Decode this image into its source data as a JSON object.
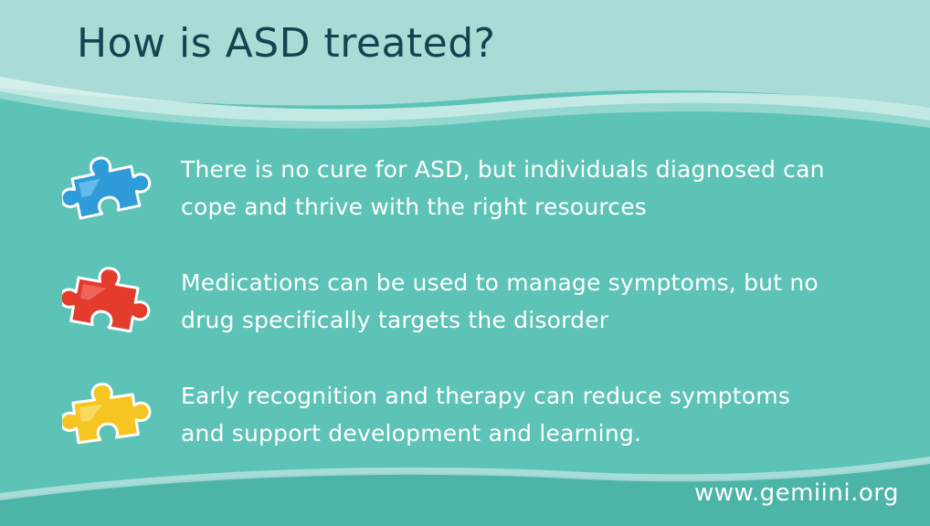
{
  "slide": {
    "title": "How is ASD treated?",
    "bullets": [
      {
        "text": "There is no cure for ASD, but individuals diagnosed can cope and thrive with the right resources",
        "icon": "blue-puzzle-piece-icon",
        "color": "#2f9bd8"
      },
      {
        "text": "Medications can be used to manage symptoms, but no drug specifically targets the disorder",
        "icon": "red-puzzle-piece-icon",
        "color": "#e33b2c"
      },
      {
        "text": "Early recognition and therapy can reduce symptoms and support development and learning.",
        "icon": "yellow-puzzle-piece-icon",
        "color": "#f6c521"
      }
    ],
    "footer_url": "www.gemiini.org"
  },
  "colors": {
    "background": "#5dc3b6",
    "header_band": "#a9dcd6",
    "title_text": "#17424f",
    "body_text": "#ffffff"
  }
}
